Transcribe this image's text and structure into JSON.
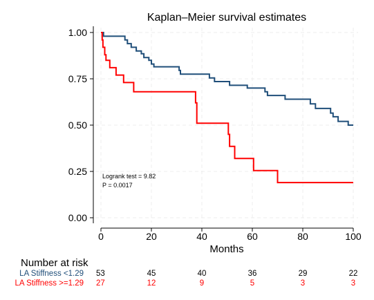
{
  "chart_data": {
    "type": "line",
    "title": "Kaplan–Meier survival estimates",
    "xlabel": "Months",
    "ylabel": "",
    "xlim": [
      0,
      100
    ],
    "ylim": [
      0,
      1
    ],
    "xticks": [
      0,
      20,
      40,
      60,
      80,
      100
    ],
    "yticks": [
      0,
      0.25,
      0.5,
      0.75,
      1.0
    ],
    "xtick_labels": [
      "0",
      "20",
      "40",
      "60",
      "80",
      "100"
    ],
    "ytick_labels": [
      "0.00",
      "0.25",
      "0.50",
      "0.75",
      "1.00"
    ],
    "grid": true,
    "series": [
      {
        "name": "LA Stiffness  <1.29",
        "color": "#1f4e79",
        "step_points": [
          [
            0,
            1.0
          ],
          [
            1,
            0.98
          ],
          [
            9,
            0.98
          ],
          [
            9.5,
            0.96
          ],
          [
            10.5,
            0.94
          ],
          [
            12,
            0.92
          ],
          [
            14,
            0.9
          ],
          [
            16,
            0.885
          ],
          [
            17,
            0.865
          ],
          [
            19,
            0.85
          ],
          [
            20,
            0.83
          ],
          [
            21,
            0.815
          ],
          [
            30,
            0.815
          ],
          [
            31,
            0.795
          ],
          [
            31.5,
            0.775
          ],
          [
            42,
            0.775
          ],
          [
            43,
            0.755
          ],
          [
            45,
            0.735
          ],
          [
            50,
            0.735
          ],
          [
            51,
            0.715
          ],
          [
            57,
            0.715
          ],
          [
            58,
            0.7
          ],
          [
            64,
            0.7
          ],
          [
            65,
            0.68
          ],
          [
            66,
            0.66
          ],
          [
            72,
            0.66
          ],
          [
            73,
            0.64
          ],
          [
            82,
            0.64
          ],
          [
            83,
            0.615
          ],
          [
            85,
            0.59
          ],
          [
            90,
            0.59
          ],
          [
            91,
            0.565
          ],
          [
            92,
            0.545
          ],
          [
            94,
            0.52
          ],
          [
            98,
            0.5
          ],
          [
            100,
            0.5
          ]
        ]
      },
      {
        "name": "LA Stiffness >=1.29",
        "color": "#ff0000",
        "step_points": [
          [
            0,
            1.0
          ],
          [
            0.5,
            0.96
          ],
          [
            0.8,
            0.92
          ],
          [
            1.5,
            0.88
          ],
          [
            2,
            0.85
          ],
          [
            3.5,
            0.81
          ],
          [
            6,
            0.77
          ],
          [
            9,
            0.73
          ],
          [
            13,
            0.68
          ],
          [
            37,
            0.68
          ],
          [
            37.5,
            0.62
          ],
          [
            38,
            0.51
          ],
          [
            50,
            0.51
          ],
          [
            50.5,
            0.45
          ],
          [
            51,
            0.385
          ],
          [
            53,
            0.32
          ],
          [
            60,
            0.32
          ],
          [
            60.5,
            0.255
          ],
          [
            70,
            0.19
          ],
          [
            100,
            0.19
          ]
        ]
      }
    ],
    "annotations": [
      "Logrank test = 9.82",
      "P = 0.0017"
    ],
    "risk_table": {
      "title": "Number at risk",
      "times": [
        0,
        20,
        40,
        60,
        80,
        100
      ],
      "rows": [
        {
          "label": "LA Stiffness  <1.29",
          "color": "#1f4e79",
          "values": [
            "53",
            "45",
            "40",
            "36",
            "29",
            "22"
          ]
        },
        {
          "label": "LA Stiffness >=1.29",
          "color": "#ff0000",
          "values": [
            "27",
            "12",
            "9",
            "5",
            "3",
            "3"
          ]
        }
      ]
    }
  }
}
